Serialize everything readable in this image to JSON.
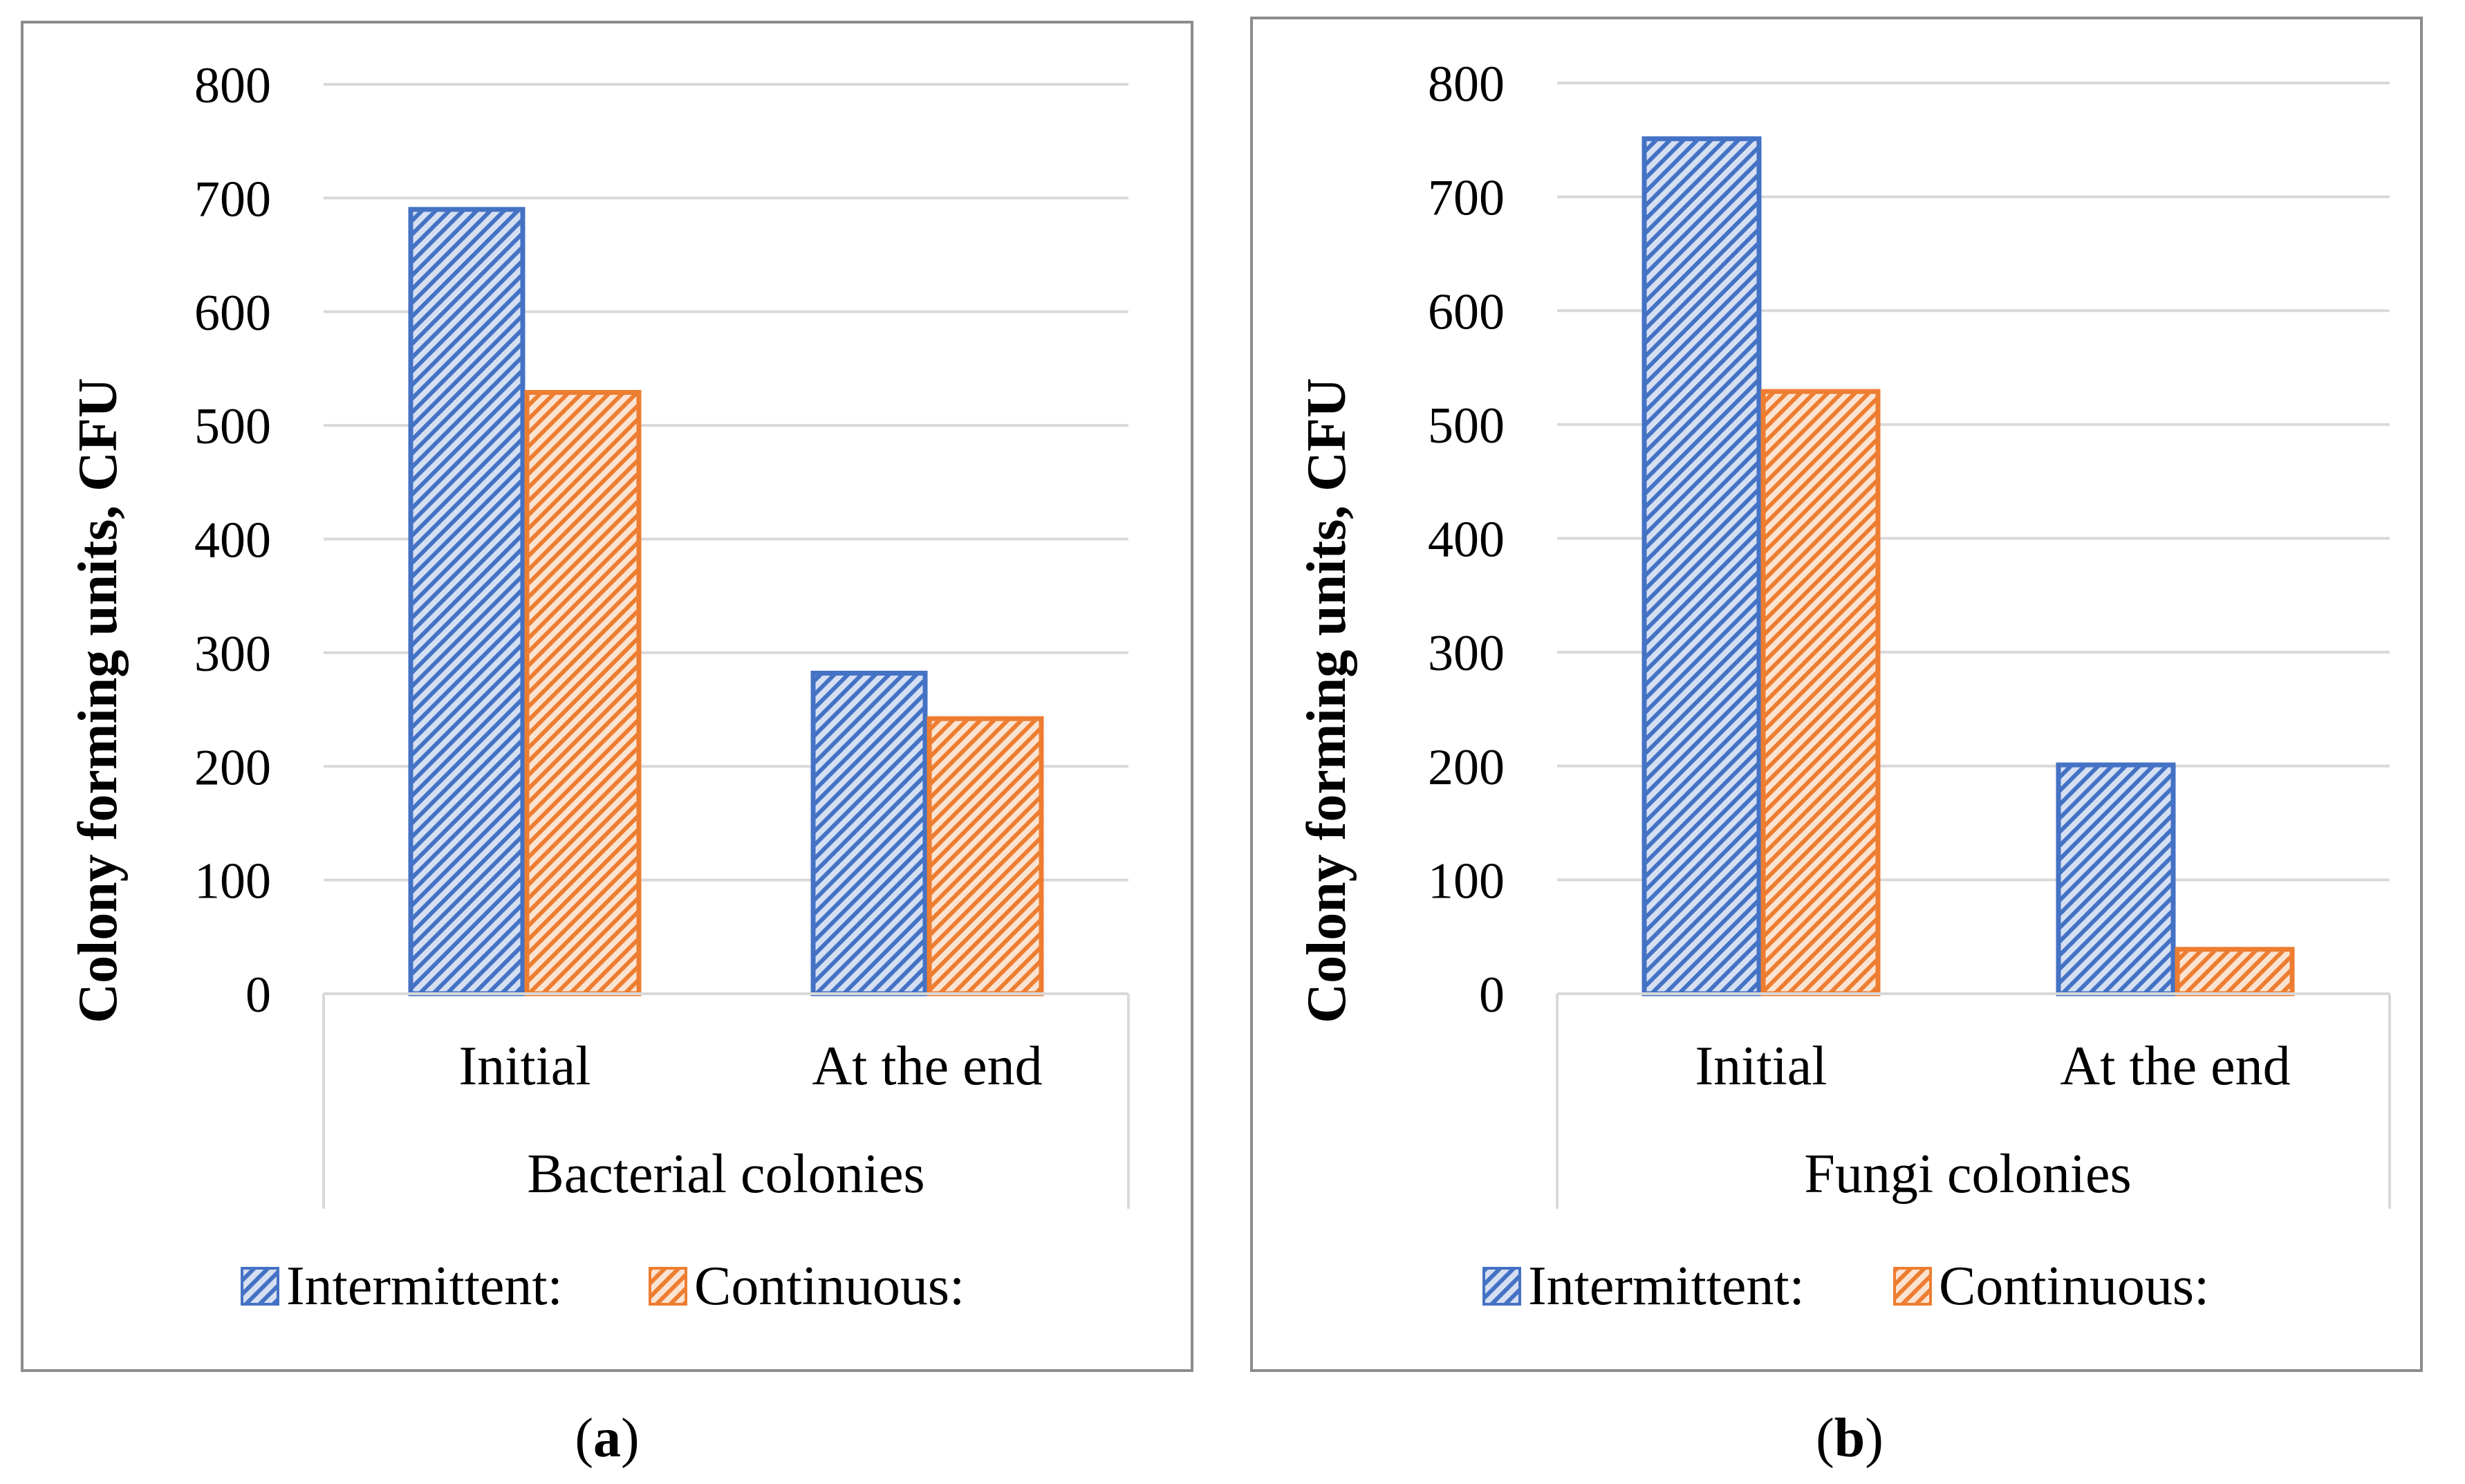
{
  "chart_data": [
    {
      "type": "bar",
      "panel_label": "a",
      "group_label": "Bacterial colonies",
      "ylabel": "Colony forming units, CFU",
      "xlabel": "",
      "ylim": [
        0,
        800
      ],
      "yticks": [
        0,
        100,
        200,
        300,
        400,
        500,
        600,
        700,
        800
      ],
      "categories": [
        "Initial",
        "At the end"
      ],
      "series": [
        {
          "name": "Intermittent:",
          "values": [
            690,
            282
          ]
        },
        {
          "name": "Continuous:",
          "values": [
            529,
            242
          ]
        }
      ],
      "grid": true,
      "legend": "bottom"
    },
    {
      "type": "bar",
      "panel_label": "b",
      "group_label": "Fungi colonies",
      "ylabel": "Colony forming units, CFU",
      "xlabel": "",
      "ylim": [
        0,
        800
      ],
      "yticks": [
        0,
        100,
        200,
        300,
        400,
        500,
        600,
        700,
        800
      ],
      "categories": [
        "Initial",
        "At the end"
      ],
      "series": [
        {
          "name": "Intermittent:",
          "values": [
            751,
            201
          ]
        },
        {
          "name": "Continuous:",
          "values": [
            529,
            39
          ]
        }
      ],
      "grid": true,
      "legend": "bottom"
    }
  ],
  "colors": {
    "intermittent": "#4472c4",
    "intermittent_light": "#d5dff2",
    "continuous": "#ed7d31",
    "continuous_light": "#fbe3d1",
    "grid": "#d9d9d9",
    "frame": "#8c8c8c"
  }
}
